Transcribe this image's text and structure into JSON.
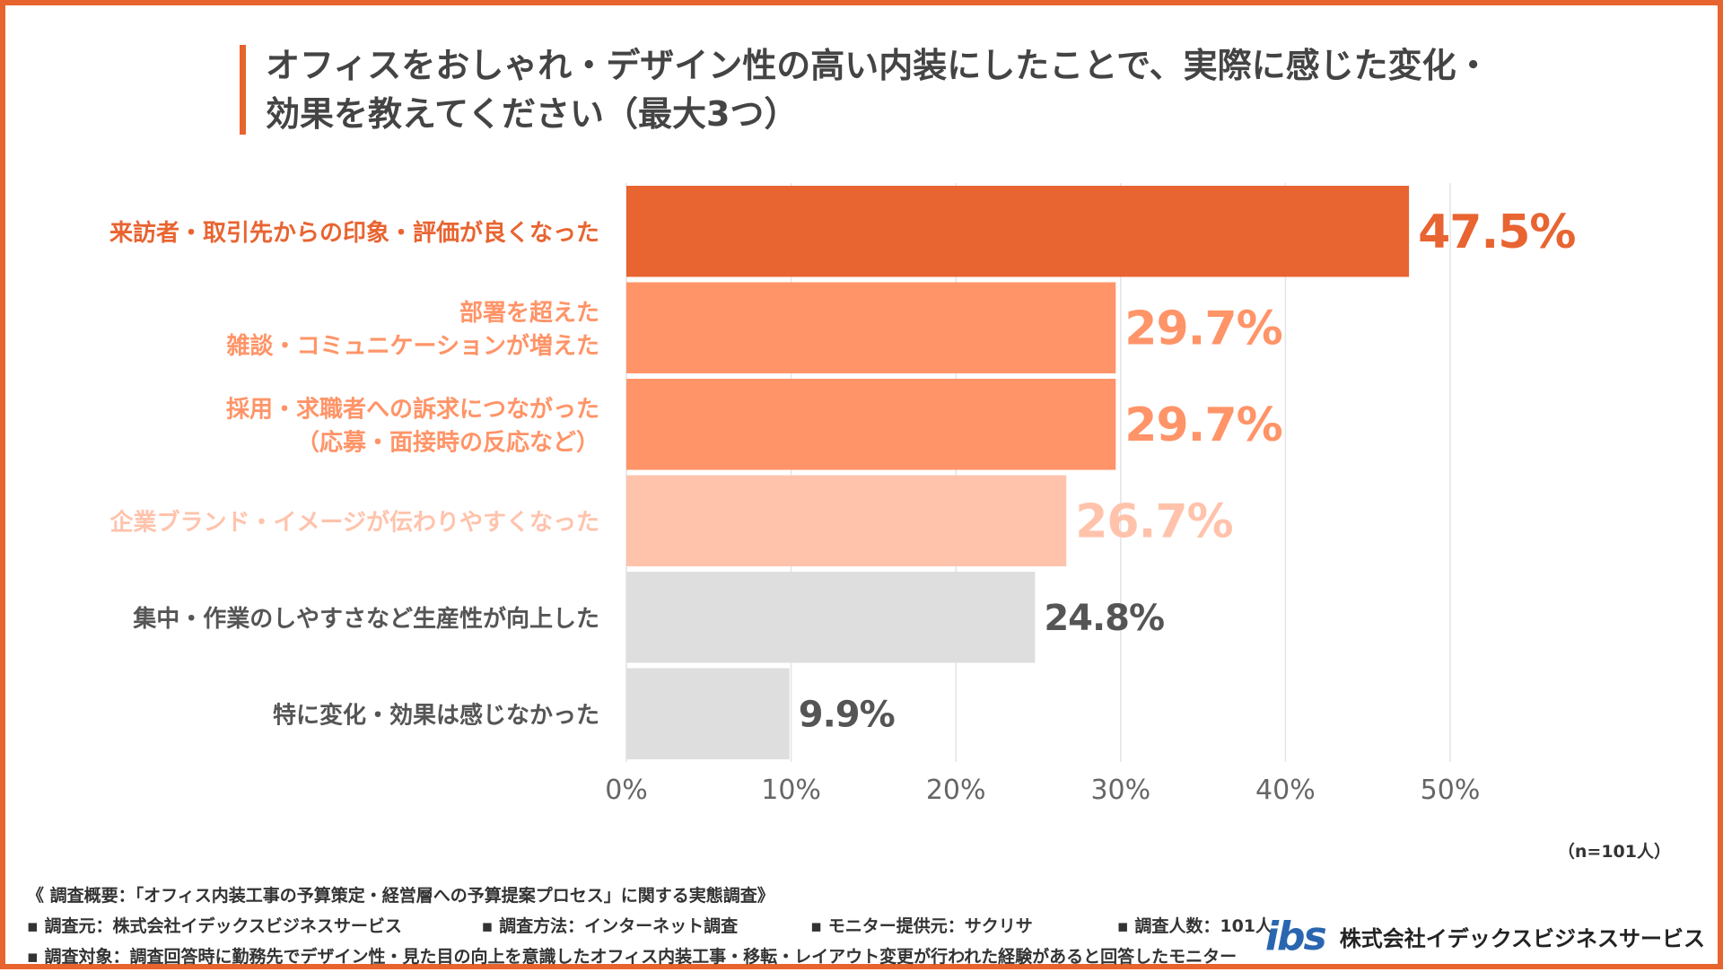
{
  "title": "オフィスをおしゃれ・デザイン性の高い内装にしたことで、実際に感じた変化・効果を教えてください（最大3つ）",
  "chart_data": {
    "type": "bar",
    "orientation": "horizontal",
    "categories": [
      [
        "来訪者・取引先からの印象・評価が良くなった"
      ],
      [
        "部署を超えた",
        "雑談・コミュニケーションが増えた"
      ],
      [
        "採用・求職者への訴求につながった",
        "（応募・面接時の反応など）"
      ],
      [
        "企業ブランド・イメージが伝わりやすくなった"
      ],
      [
        "集中・作業のしやすさなど生産性が向上した"
      ],
      [
        "特に変化・効果は感じなかった"
      ]
    ],
    "values": [
      47.5,
      29.7,
      29.7,
      26.7,
      24.8,
      9.9
    ],
    "value_labels": [
      "47.5%",
      "29.7%",
      "29.7%",
      "26.7%",
      "24.8%",
      "9.9%"
    ],
    "bar_colors": [
      "#E86431",
      "#FF9468",
      "#FF9468",
      "#FFC3AC",
      "#DEDEDE",
      "#DEDEDE"
    ],
    "label_colors": [
      "#E86431",
      "#FF9468",
      "#FF9468",
      "#FFC3AC",
      "#555555",
      "#555555"
    ],
    "value_colors": [
      "#E86431",
      "#FF9468",
      "#FF9468",
      "#FFC3AC",
      "#555555",
      "#555555"
    ],
    "xlim": [
      0,
      50
    ],
    "xticks": [
      "0%",
      "10%",
      "20%",
      "30%",
      "40%",
      "50%"
    ],
    "grid": true
  },
  "note_n": "（n=101人）",
  "footer": {
    "summary": "《 調査概要：「オフィス内装工事の予算策定・経営層への予算提案プロセス」に関する実態調査》",
    "items_row2": [
      "▪ 調査元：株式会社イデックスビジネスサービス",
      "▪ 調査方法：インターネット調査",
      "▪ モニター提供元：サクリサ",
      "▪ 調査人数：101人"
    ],
    "target": "▪ 調査対象：調査回答時に勤務先でデザイン性・見た目の向上を意識したオフィス内装工事・移転・レイアウト変更が行われた経験があると回答したモニター"
  },
  "logo": {
    "mark": "ibs",
    "company": "株式会社イデックスビジネスサービス"
  }
}
